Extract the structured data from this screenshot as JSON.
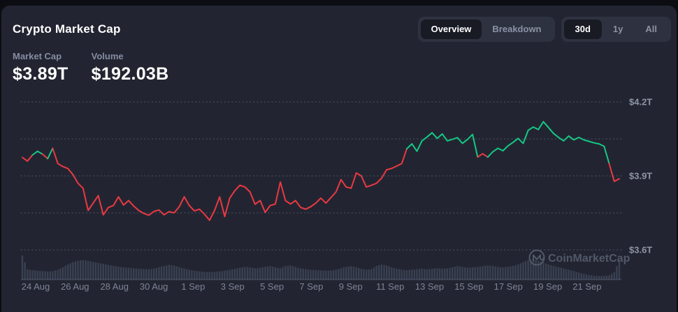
{
  "header": {
    "title": "Crypto Market Cap"
  },
  "stats": {
    "market_cap": {
      "label": "Market Cap",
      "value": "$3.89T"
    },
    "volume": {
      "label": "Volume",
      "value": "$192.03B"
    }
  },
  "controls": {
    "view_tabs": {
      "options": [
        "Overview",
        "Breakdown"
      ],
      "active_index": 0
    },
    "range_tabs": {
      "options": [
        "30d",
        "1y",
        "All"
      ],
      "active_index": 0
    }
  },
  "watermark": {
    "label": "CoinMarketCap",
    "icon": "coinmarketcap-logo-icon"
  },
  "colors": {
    "green": "#16c784",
    "red": "#ea3943",
    "card_bg": "#222531",
    "page_bg": "#0c0d13",
    "control_bg": "#2e3240",
    "control_active_bg": "#181a24",
    "text_white": "#ffffff",
    "text_muted": "#858ca2",
    "axis_label": "#8e94a6",
    "gridline": "#7a8094",
    "volume_bar": "#3c4254",
    "watermark": "#525869"
  },
  "chart_data": {
    "type": "line",
    "title": "Crypto Market Cap",
    "range": "30d",
    "current_market_cap_trillions": 3.89,
    "current_volume_billions": 192.03,
    "unit": "trillion USD",
    "grid": "dotted horizontal",
    "legend": "none",
    "x_tick_labels": [
      "24 Aug",
      "26 Aug",
      "28 Aug",
      "30 Aug",
      "1 Sep",
      "3 Sep",
      "5 Sep",
      "7 Sep",
      "9 Sep",
      "11 Sep",
      "13 Sep",
      "15 Sep",
      "17 Sep",
      "19 Sep",
      "21 Sep"
    ],
    "y_axis": {
      "tick_labels": [
        "$4.2T",
        "$3.9T",
        "$3.6T"
      ],
      "tick_values": [
        4.2,
        3.9,
        3.6
      ],
      "gridline_values": [
        4.2,
        4.05,
        3.9,
        3.75,
        3.6
      ],
      "ylim": [
        3.55,
        4.25
      ]
    },
    "baseline_value": 3.985,
    "line_color_rule": "green when at/above baseline_value, red when below",
    "series": [
      {
        "name": "Total Market Cap ($T)",
        "values": [
          3.975,
          3.96,
          3.985,
          4.0,
          3.988,
          3.97,
          4.012,
          3.95,
          3.938,
          3.93,
          3.905,
          3.87,
          3.85,
          3.76,
          3.79,
          3.82,
          3.742,
          3.772,
          3.78,
          3.815,
          3.782,
          3.8,
          3.778,
          3.76,
          3.748,
          3.74,
          3.756,
          3.762,
          3.742,
          3.755,
          3.75,
          3.775,
          3.815,
          3.78,
          3.758,
          3.765,
          3.745,
          3.72,
          3.76,
          3.815,
          3.735,
          3.81,
          3.84,
          3.862,
          3.855,
          3.835,
          3.785,
          3.8,
          3.752,
          3.78,
          3.786,
          3.875,
          3.8,
          3.786,
          3.8,
          3.772,
          3.765,
          3.775,
          3.79,
          3.81,
          3.79,
          3.812,
          3.835,
          3.885,
          3.855,
          3.85,
          3.912,
          3.9,
          3.855,
          3.862,
          3.87,
          3.89,
          3.925,
          3.93,
          3.94,
          3.95,
          4.01,
          4.03,
          4.0,
          4.042,
          4.058,
          4.075,
          4.052,
          4.07,
          4.042,
          4.048,
          4.055,
          4.032,
          4.048,
          4.068,
          3.976,
          3.99,
          3.976,
          3.998,
          4.012,
          4.002,
          4.022,
          4.036,
          4.052,
          4.032,
          4.085,
          4.098,
          4.088,
          4.12,
          4.096,
          4.072,
          4.056,
          4.042,
          4.062,
          4.046,
          4.056,
          4.046,
          4.04,
          4.034,
          4.03,
          4.02,
          3.95,
          3.878,
          3.888
        ]
      }
    ],
    "volume_series": {
      "name": "Volume (relative height 0-1)",
      "values": [
        1.0,
        0.42,
        0.38,
        0.36,
        0.34,
        0.33,
        0.34,
        0.4,
        0.5,
        0.62,
        0.72,
        0.78,
        0.8,
        0.77,
        0.73,
        0.69,
        0.64,
        0.6,
        0.56,
        0.53,
        0.5,
        0.48,
        0.46,
        0.44,
        0.43,
        0.42,
        0.44,
        0.5,
        0.56,
        0.6,
        0.57,
        0.51,
        0.45,
        0.4,
        0.36,
        0.33,
        0.31,
        0.3,
        0.31,
        0.33,
        0.36,
        0.4,
        0.44,
        0.48,
        0.52,
        0.5,
        0.46,
        0.48,
        0.53,
        0.55,
        0.5,
        0.46,
        0.55,
        0.58,
        0.52,
        0.46,
        0.42,
        0.4,
        0.38,
        0.37,
        0.36,
        0.37,
        0.4,
        0.46,
        0.52,
        0.55,
        0.5,
        0.44,
        0.4,
        0.42,
        0.56,
        0.62,
        0.58,
        0.5,
        0.44,
        0.4,
        0.38,
        0.4,
        0.42,
        0.44,
        0.42,
        0.44,
        0.46,
        0.44,
        0.46,
        0.5,
        0.55,
        0.52,
        0.48,
        0.5,
        0.52,
        0.55,
        0.58,
        0.56,
        0.52,
        0.5,
        0.52,
        0.56,
        0.62,
        0.72,
        0.8,
        0.85,
        0.78,
        0.7,
        0.62,
        0.56,
        0.5,
        0.45,
        0.4,
        0.34,
        0.28,
        0.22,
        0.18,
        0.15,
        0.14,
        0.14,
        0.16,
        0.3,
        0.8
      ]
    }
  }
}
